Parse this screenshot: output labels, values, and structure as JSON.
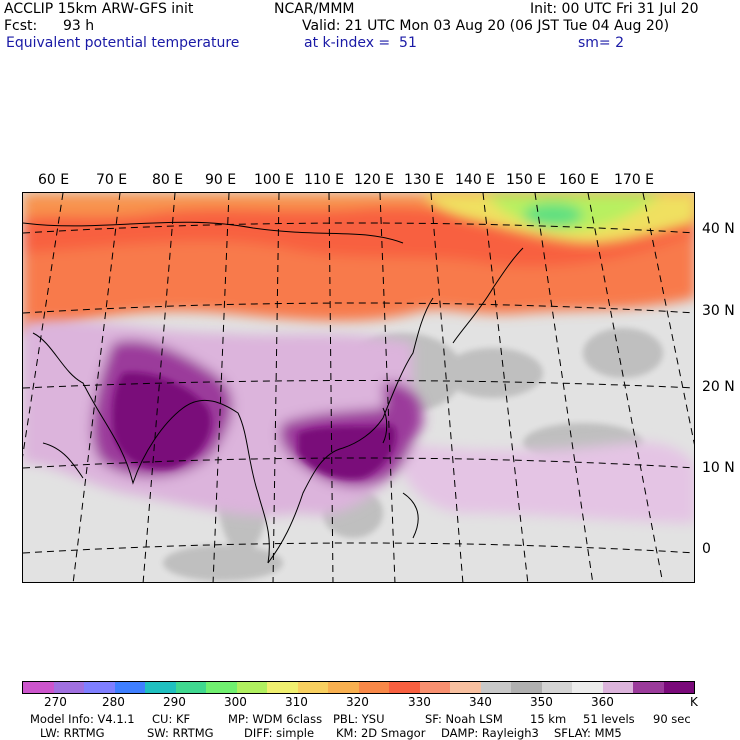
{
  "header": {
    "model": "ACCLIP 15km ARW-GFS init",
    "org": "NCAR/MMM",
    "init": "Init: 00 UTC Fri 31 Jul 20",
    "fcst_label": "Fcst:",
    "fcst_value": "93 h",
    "valid": "Valid: 21 UTC Mon 03 Aug 20 (06 JST Tue 04 Aug 20)",
    "field": "Equivalent potential temperature",
    "level": "at k-index =  51",
    "smooth": "sm= 2"
  },
  "map": {
    "lon_labels": [
      "60 E",
      "70 E",
      "80 E",
      "90 E",
      "100 E",
      "110 E",
      "120 E",
      "130 E",
      "140 E",
      "150 E",
      "160 E",
      "170 E"
    ],
    "lat_labels": [
      "40 N",
      "30 N",
      "20 N",
      "10 N",
      "0"
    ]
  },
  "colorbar": {
    "colors": [
      "#cc55cc",
      "#a070e0",
      "#7f7fff",
      "#3f7fff",
      "#20c0c0",
      "#40d890",
      "#70f070",
      "#b0f060",
      "#f0f070",
      "#f8d060",
      "#f8b050",
      "#f88848",
      "#f86040",
      "#f89070",
      "#f8c0a0",
      "#c8c8c8",
      "#b0b0b0",
      "#d4d4d4",
      "#ececec",
      "#dcb4dc",
      "#9b3b9b",
      "#7a0a7a"
    ],
    "ticks": [
      "270",
      "280",
      "290",
      "300",
      "310",
      "320",
      "330",
      "340",
      "350",
      "360"
    ],
    "unit": "K"
  },
  "footer": {
    "line1": [
      "Model Info: V4.1.1",
      "CU: KF",
      "MP: WDM 6class",
      "PBL: YSU",
      "SF: Noah LSM",
      "15 km",
      "51 levels",
      "90 sec"
    ],
    "line2": [
      "LW: RRTMG",
      "SW: RRTMG",
      "DIFF: simple",
      "KM: 2D Smagor",
      "DAMP: Rayleigh3",
      "SFLAY: MM5"
    ]
  }
}
